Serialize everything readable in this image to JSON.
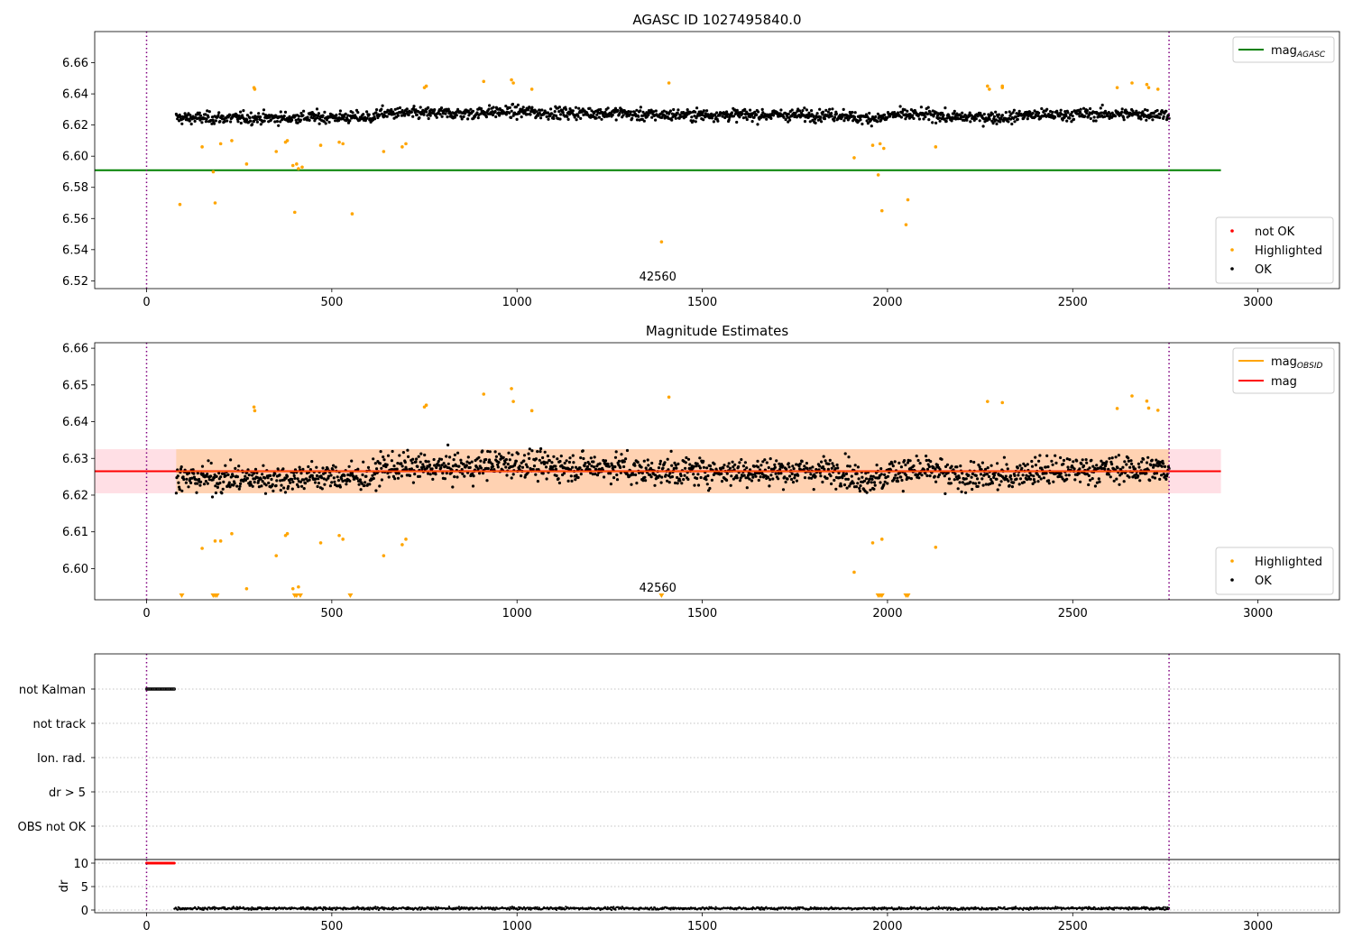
{
  "chart_data": [
    {
      "type": "scatter",
      "title": "AGASC ID 1027495840.0",
      "xlabel": "",
      "ylabel": "",
      "xlim": [
        -140,
        3220
      ],
      "ylim": [
        6.515,
        6.68
      ],
      "xticks": [
        0,
        500,
        1000,
        1500,
        2000,
        2500,
        3000
      ],
      "yticks": [
        6.52,
        6.54,
        6.56,
        6.58,
        6.6,
        6.62,
        6.64,
        6.66
      ],
      "ytick_decimals": 2,
      "grid": false,
      "vlines": [
        0,
        2760
      ],
      "annotation": "42560",
      "annotation_x": 1380,
      "lines": [
        {
          "name": "mag_AGASC",
          "label_main": "mag",
          "label_sub": "AGASC",
          "y": 6.591,
          "x_range": [
            -140,
            2900
          ],
          "color": "#008000"
        }
      ],
      "ok_series": {
        "name": "OK",
        "color": "#000000",
        "x_range": [
          80,
          2760
        ],
        "n_points": 1700,
        "baseline": 6.6265,
        "noise": 0.0045,
        "segment_breaks": [
          80,
          400,
          620,
          900,
          1050,
          1300,
          1450,
          1700,
          1900,
          2000,
          2150,
          2350,
          2500,
          2760
        ],
        "segment_offsets": [
          -0.004,
          -0.003,
          0.002,
          0.004,
          0.0025,
          0.0,
          0.0,
          0.0,
          -0.004,
          0.0,
          -0.003,
          0.0,
          0.001
        ]
      },
      "highlighted": {
        "name": "Highlighted",
        "color": "#ffa500",
        "x": [
          90,
          150,
          180,
          185,
          200,
          230,
          270,
          290,
          292,
          350,
          375,
          380,
          395,
          400,
          405,
          410,
          420,
          470,
          520,
          530,
          555,
          640,
          690,
          700,
          750,
          755,
          910,
          985,
          990,
          1040,
          1390,
          1410,
          1910,
          1960,
          1975,
          1980,
          1985,
          1990,
          2050,
          2055,
          2130,
          2270,
          2275,
          2310,
          2310,
          2620,
          2660,
          2700,
          2705,
          2730
        ],
        "y": [
          6.569,
          6.606,
          6.59,
          6.57,
          6.608,
          6.61,
          6.595,
          6.644,
          6.643,
          6.603,
          6.609,
          6.61,
          6.594,
          6.564,
          6.595,
          6.592,
          6.593,
          6.607,
          6.609,
          6.608,
          6.563,
          6.603,
          6.606,
          6.608,
          6.644,
          6.645,
          6.648,
          6.649,
          6.647,
          6.643,
          6.545,
          6.647,
          6.599,
          6.607,
          6.588,
          6.608,
          6.565,
          6.605,
          6.556,
          6.572,
          6.606,
          6.645,
          6.643,
          6.645,
          6.644,
          6.644,
          6.647,
          6.646,
          6.644,
          6.643
        ]
      },
      "legend_lines": {
        "position": "upper right",
        "entries": [
          {
            "label_main": "mag",
            "label_sub": "AGASC",
            "color": "#008000",
            "kind": "line"
          }
        ]
      },
      "legend_points": {
        "position": "lower right",
        "entries": [
          {
            "label": "not OK",
            "color": "#ff0000"
          },
          {
            "label": "Highlighted",
            "color": "#ffa500"
          },
          {
            "label": "OK",
            "color": "#000000"
          }
        ]
      }
    },
    {
      "type": "scatter",
      "title": "Magnitude Estimates",
      "xlabel": "",
      "ylabel": "",
      "xlim": [
        -140,
        3220
      ],
      "ylim": [
        6.5915,
        6.6615
      ],
      "xticks": [
        0,
        500,
        1000,
        1500,
        2000,
        2500,
        3000
      ],
      "yticks": [
        6.6,
        6.61,
        6.62,
        6.63,
        6.64,
        6.65,
        6.66
      ],
      "ytick_decimals": 2,
      "grid": false,
      "vlines": [
        0,
        2760
      ],
      "annotation": "42560",
      "annotation_x": 1380,
      "band": {
        "y_low": 6.6205,
        "y_high": 6.6325,
        "x_range": [
          -140,
          2900
        ],
        "color": "#ffc0cb"
      },
      "obsid_band": {
        "y_low": 6.6205,
        "y_high": 6.6325,
        "x_range": [
          80,
          2760
        ],
        "color": "#ffa500"
      },
      "lines": [
        {
          "name": "mag",
          "label_main": "mag",
          "y": 6.6265,
          "x_range": [
            -140,
            2900
          ],
          "color": "#ff0000"
        }
      ],
      "ok_series": {
        "name": "OK",
        "color": "#000000",
        "x_range": [
          80,
          2760
        ],
        "n_points": 1700,
        "baseline": 6.6265,
        "noise": 0.0045,
        "segment_breaks": [
          80,
          400,
          620,
          900,
          1050,
          1300,
          1450,
          1700,
          1900,
          2000,
          2150,
          2350,
          2500,
          2760
        ],
        "segment_offsets": [
          -0.004,
          -0.003,
          0.002,
          0.004,
          0.0025,
          0.0,
          0.0,
          0.0,
          -0.004,
          0.0,
          -0.003,
          0.0,
          0.001
        ]
      },
      "highlighted": {
        "name": "Highlighted",
        "color": "#ffa500",
        "x": [
          150,
          185,
          200,
          230,
          270,
          290,
          292,
          350,
          375,
          380,
          395,
          410,
          470,
          520,
          530,
          640,
          690,
          700,
          750,
          755,
          910,
          985,
          990,
          1040,
          1410,
          1910,
          1960,
          1985,
          2130,
          2270,
          2310,
          2620,
          2660,
          2700,
          2705,
          2730
        ],
        "y": [
          6.6055,
          6.6075,
          6.6075,
          6.6095,
          6.5945,
          6.644,
          6.643,
          6.6035,
          6.609,
          6.6095,
          6.5945,
          6.595,
          6.607,
          6.609,
          6.608,
          6.6035,
          6.6065,
          6.608,
          6.644,
          6.6445,
          6.6475,
          6.649,
          6.6455,
          6.643,
          6.6467,
          6.599,
          6.607,
          6.608,
          6.6058,
          6.6455,
          6.6452,
          6.6436,
          6.647,
          6.6456,
          6.6437,
          6.6431
        ]
      },
      "offscale_markers": {
        "color": "#ffa500",
        "x": [
          95,
          180,
          185,
          190,
          400,
          405,
          415,
          550,
          1390,
          1975,
          1980,
          1985,
          2050,
          2055
        ]
      },
      "legend_lines": {
        "position": "upper right",
        "entries": [
          {
            "label_main": "mag",
            "label_sub": "OBSID",
            "color": "#ffa500",
            "kind": "line"
          },
          {
            "label_main": "mag",
            "color": "#ff0000",
            "kind": "line"
          }
        ]
      },
      "legend_points": {
        "position": "lower right",
        "entries": [
          {
            "label": "Highlighted",
            "color": "#ffa500"
          },
          {
            "label": "OK",
            "color": "#000000"
          }
        ]
      }
    },
    {
      "type": "scatter",
      "title": "",
      "xlabel": "",
      "ylabel": "",
      "xlim": [
        -140,
        3220
      ],
      "xticks": [
        0,
        500,
        1000,
        1500,
        2000,
        2500,
        3000
      ],
      "vlines": [
        0,
        2760
      ],
      "flag_rows": [
        "not Kalman",
        "not track",
        "Ion. rad.",
        "dr > 5",
        "OBS not OK"
      ],
      "flag_points": {
        "row": "not Kalman",
        "x_range": [
          0,
          75
        ],
        "n": 26,
        "color": "#000000"
      },
      "grid": true
    },
    {
      "type": "scatter",
      "title": "",
      "xlabel": "",
      "ylabel": "dr",
      "xlim": [
        -140,
        3220
      ],
      "ylim": [
        0,
        10
      ],
      "xticks": [
        0,
        500,
        1000,
        1500,
        2000,
        2500,
        3000
      ],
      "yticks": [
        0,
        5,
        10
      ],
      "ytick_decimals": 0,
      "grid": true,
      "vlines": [
        0,
        2760
      ],
      "clipped_points": {
        "x_range": [
          0,
          75
        ],
        "y": 10,
        "n": 26,
        "color": "#ff0000"
      },
      "ok_series": {
        "color": "#000000",
        "x_range": [
          75,
          2760
        ],
        "n_points": 1500,
        "baseline": 0.35,
        "noise": 0.2
      }
    }
  ]
}
